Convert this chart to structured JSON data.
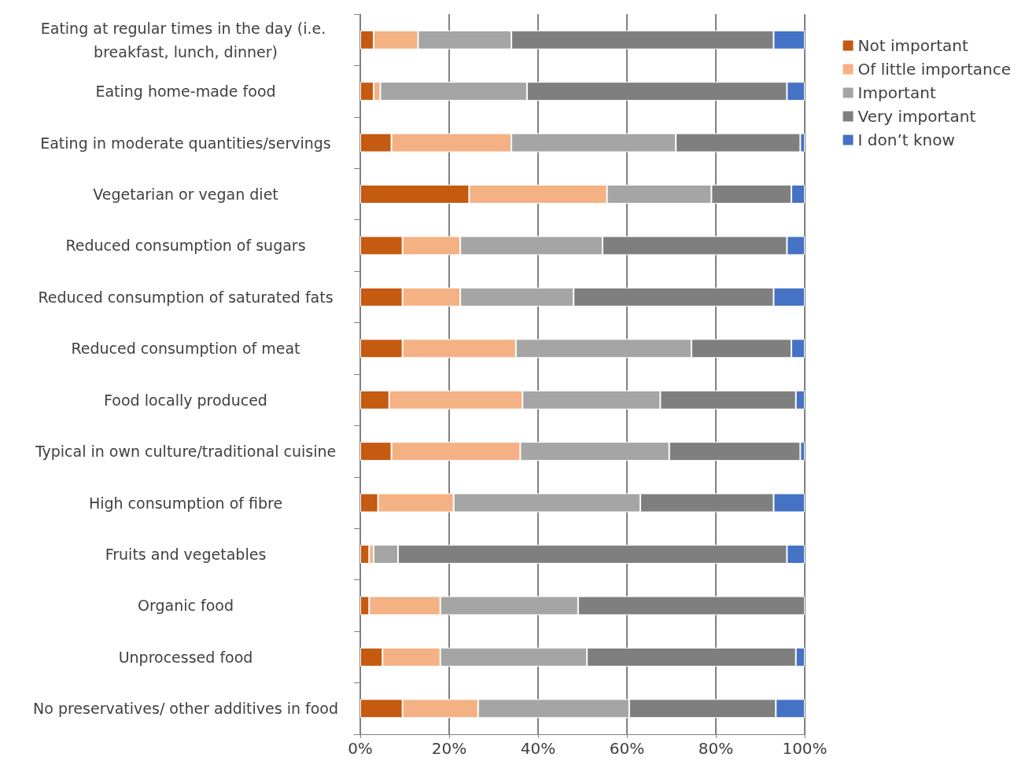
{
  "chart_data": {
    "type": "bar",
    "orientation": "horizontal",
    "stacked": true,
    "categories": [
      "Eating at regular times in the day (i.e. breakfast, lunch, dinner)",
      "Eating home-made food",
      "Eating in moderate quantities/servings",
      "Vegetarian or vegan diet",
      "Reduced consumption of sugars",
      "Reduced consumption of saturated fats",
      "Reduced consumption of meat",
      "Food locally produced",
      "Typical in own culture/traditional cuisine",
      "High consumption of fibre",
      "Fruits and vegetables",
      "Organic food",
      "Unprocessed food",
      "No preservatives/ other additives in food"
    ],
    "series": [
      {
        "name": "Not important",
        "color": "#c55a11",
        "values": [
          3,
          3,
          7,
          24.5,
          9.5,
          9.5,
          9.5,
          6.5,
          7,
          4,
          2,
          2,
          5,
          9.5
        ]
      },
      {
        "name": "Of little importance",
        "color": "#f4b183",
        "values": [
          10,
          1.5,
          27,
          31,
          13,
          13,
          25.5,
          30,
          29,
          17,
          1,
          16,
          13,
          17
        ]
      },
      {
        "name": "Important",
        "color": "#a5a5a5",
        "values": [
          21,
          33,
          37,
          23.5,
          32,
          25.5,
          39.5,
          31,
          33.5,
          42,
          5.5,
          31,
          33,
          34
        ]
      },
      {
        "name": "Very important",
        "color": "#7f7f7f",
        "values": [
          59,
          58.5,
          28,
          18,
          41.5,
          45,
          22.5,
          30.5,
          29.5,
          30,
          87.5,
          51,
          47,
          33
        ]
      },
      {
        "name": "I don’t know",
        "color": "#4472c4",
        "values": [
          7,
          4,
          1,
          3,
          4,
          7,
          3,
          2,
          1,
          7,
          4,
          0,
          2,
          6.5
        ]
      }
    ],
    "xlim": [
      0,
      100
    ],
    "xticks": [
      {
        "value": 0,
        "label": "0%"
      },
      {
        "value": 20,
        "label": "20%"
      },
      {
        "value": 40,
        "label": "40%"
      },
      {
        "value": 60,
        "label": "60%"
      },
      {
        "value": 80,
        "label": "80%"
      },
      {
        "value": 100,
        "label": "100%"
      }
    ],
    "grid": "x",
    "legend": "right"
  }
}
